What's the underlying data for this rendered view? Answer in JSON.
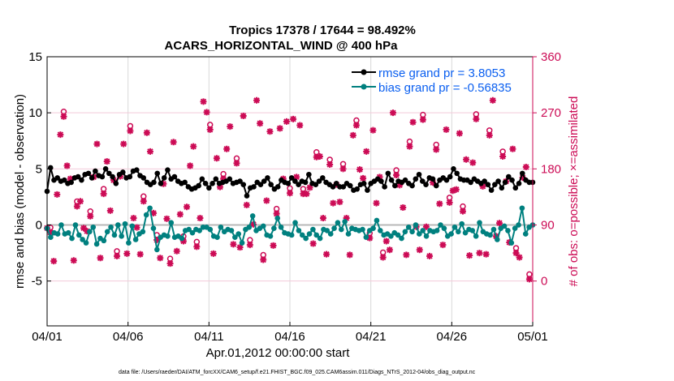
{
  "chart_data": {
    "type": "line",
    "title": [
      "Tropics 17378 / 17644 = 98.492%",
      "ACARS_HORIZONTAL_WIND @ 400 hPa"
    ],
    "xlabel": "Apr.01,2012 00:00:00 start",
    "ylabel": "rmse and bias (model - observation)",
    "ylabel_right": "# of obs: o=possible; ×=assimilated",
    "xlim_days": [
      0,
      30
    ],
    "ylim": [
      -9,
      15
    ],
    "ylim_right": [
      -72,
      360
    ],
    "x_ticks": [
      {
        "day": 0,
        "label": "04/01"
      },
      {
        "day": 5,
        "label": "04/06"
      },
      {
        "day": 10,
        "label": "04/11"
      },
      {
        "day": 15,
        "label": "04/16"
      },
      {
        "day": 20,
        "label": "04/21"
      },
      {
        "day": 25,
        "label": "04/26"
      },
      {
        "day": 30,
        "label": "05/01"
      }
    ],
    "y_ticks": [
      15,
      10,
      5,
      0,
      -5
    ],
    "y_ticks_right": [
      360,
      270,
      180,
      90,
      0
    ],
    "grid": true,
    "legend_position": "top-right",
    "legend": [
      {
        "name": "rmse grand pr = 3.8053",
        "color": "#000000"
      },
      {
        "name": "bias grand pr = -0.56835",
        "color": "#00807f"
      }
    ],
    "series": [
      {
        "name": "rmse",
        "color": "#000000",
        "step_days": 0.25,
        "values": [
          3.0,
          5.1,
          4.0,
          4.2,
          3.9,
          4.0,
          3.7,
          3.8,
          4.2,
          4.3,
          4.0,
          4.5,
          4.6,
          4.2,
          4.8,
          4.4,
          4.3,
          5.0,
          4.6,
          4.3,
          3.7,
          4.5,
          4.7,
          4.2,
          4.3,
          4.8,
          4.9,
          4.4,
          4.2,
          3.8,
          3.6,
          3.8,
          4.6,
          3.7,
          4.2,
          4.9,
          4.1,
          4.3,
          3.9,
          3.7,
          3.8,
          3.4,
          3.2,
          3.3,
          3.5,
          4.1,
          3.7,
          3.3,
          3.7,
          4.1,
          3.7,
          3.8,
          3.9,
          4.1,
          3.7,
          3.8,
          3.9,
          3.6,
          2.6,
          3.3,
          3.4,
          3.8,
          3.6,
          3.9,
          4.2,
          3.6,
          3.2,
          3.4,
          4.0,
          3.8,
          3.7,
          4.2,
          3.9,
          3.6,
          3.9,
          3.8,
          4.5,
          3.7,
          3.6,
          3.9,
          4.2,
          3.8,
          3.6,
          3.4,
          3.7,
          3.4,
          3.4,
          3.7,
          3.5,
          3.1,
          3.2,
          3.6,
          3.7,
          3.1,
          3.7,
          3.9,
          4.1,
          3.9,
          3.4,
          4.6,
          4.0,
          3.5,
          3.9,
          3.8,
          4.0,
          3.7,
          3.5,
          4.1,
          4.5,
          3.9,
          3.6,
          4.2,
          4.1,
          3.5,
          4.0,
          4.2,
          4.0,
          4.3,
          5.0,
          4.6,
          4.1,
          4.0,
          4.0,
          3.8,
          4.1,
          3.9,
          3.7,
          3.9,
          3.6,
          3.1,
          3.6,
          3.9,
          3.3,
          3.8,
          4.3,
          4.0,
          3.3,
          3.7,
          4.6,
          4.0,
          3.8,
          3.8
        ],
        "values_note": "rmse time series, 6-hourly"
      },
      {
        "name": "bias",
        "color": "#00807f",
        "step_days": 0.25,
        "values": [
          -0.3,
          -1.1,
          -0.7,
          -0.8,
          0.0,
          -0.8,
          -0.7,
          -1.2,
          0.0,
          -0.9,
          -1.3,
          -1.6,
          -0.6,
          -0.2,
          -1.7,
          -1.2,
          -1.4,
          -0.6,
          -0.2,
          -0.9,
          0.0,
          -1.0,
          0.1,
          -1.6,
          -0.1,
          -1.3,
          -0.8,
          -0.6,
          0.9,
          1.5,
          -0.3,
          -2.2,
          -1.1,
          -0.9,
          -1.0,
          0.2,
          -1.1,
          -1.0,
          -1.2,
          -0.5,
          -0.4,
          -0.7,
          -0.4,
          -0.5,
          -0.2,
          -0.2,
          -0.4,
          -1.0,
          -1.1,
          -0.2,
          -0.6,
          -0.4,
          -0.5,
          -1.1,
          -0.8,
          -1.6,
          -0.4,
          -0.2,
          0.8,
          -0.5,
          -0.3,
          -0.1,
          -0.9,
          -1.0,
          -0.3,
          0.6,
          -0.2,
          -0.7,
          -0.8,
          -0.9,
          0.2,
          -0.5,
          -0.9,
          -1.2,
          -0.8,
          -0.4,
          -0.9,
          -1.2,
          -0.4,
          -0.5,
          -0.8,
          -0.3,
          0.2,
          -0.4,
          0.3,
          -0.8,
          -0.3,
          -0.4,
          -0.5,
          -0.4,
          -1.1,
          -0.5,
          -0.3,
          0.4,
          -0.5,
          -0.9,
          -0.8,
          -1.0,
          -0.7,
          -0.9,
          -1.2,
          -0.6,
          -0.2,
          -0.6,
          0.0,
          -0.8,
          -0.5,
          -1.0,
          -0.5,
          -0.6,
          -0.5,
          0.0,
          -0.3,
          -1.0,
          -0.8,
          -0.2,
          -0.6,
          0.1,
          -0.7,
          -0.4,
          -0.5,
          -1.0,
          0.2,
          -0.6,
          -0.8,
          -0.9,
          -0.4,
          -1.3,
          -0.3,
          -0.1,
          -0.5,
          -1.6,
          -0.3,
          0.0,
          1.5,
          -0.8,
          -0.2,
          0.0
        ],
        "values_note": "bias time series, 6-hourly"
      }
    ],
    "obs_counts": {
      "color": "#cc0b55",
      "step_days": 0.25,
      "assimilated": [
        85,
        78,
        32,
        139,
        235,
        264,
        185,
        164,
        33,
        120,
        128,
        85,
        80,
        104,
        167,
        220,
        37,
        140,
        192,
        113,
        162,
        40,
        168,
        220,
        44,
        241,
        101,
        86,
        43,
        128,
        238,
        208,
        109,
        66,
        37,
        156,
        100,
        28,
        223,
        48,
        107,
        64,
        119,
        185,
        216,
        55,
        101,
        288,
        271,
        243,
        44,
        197,
        151,
        164,
        212,
        248,
        59,
        189,
        54,
        265,
        122,
        58,
        91,
        290,
        253,
        34,
        129,
        240,
        57,
        108,
        245,
        164,
        256,
        141,
        260,
        167,
        250,
        140,
        140,
        150,
        60,
        199,
        200,
        101,
        43,
        187,
        125,
        155,
        127,
        180,
        101,
        42,
        234,
        250,
        179,
        165,
        208,
        69,
        242,
        125,
        167,
        38,
        64,
        50,
        270,
        170,
        154,
        118,
        42,
        216,
        255,
        87,
        50,
        259,
        87,
        40,
        158,
        211,
        124,
        58,
        243,
        126,
        145,
        147,
        237,
        112,
        195,
        41,
        190,
        260,
        45,
        152,
        43,
        234,
        290,
        72,
        93,
        200,
        160,
        62,
        212,
        45,
        38,
        166,
        183,
        3
      ],
      "possible_subset_shown": true
    }
  },
  "footer": "data file: /Users/raeder/DAI/ATM_forcXX/CAM6_setup/f.e21.FHIST_BGC.f09_025.CAM6assim.011/Diags_NTrS_2012-04/obs_diag_output.nc"
}
